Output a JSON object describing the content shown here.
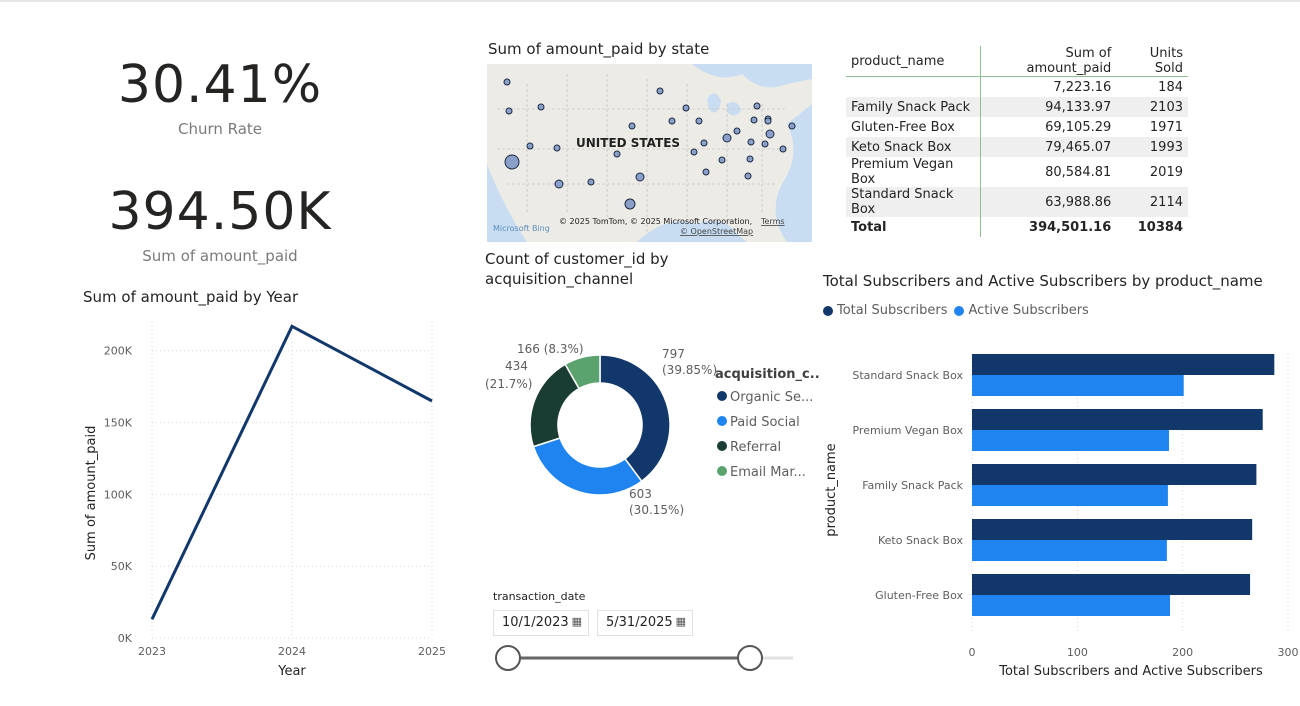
{
  "kpis": {
    "churn": {
      "value": "30.41%",
      "label": "Churn Rate"
    },
    "amount": {
      "value": "394.50K",
      "label": "Sum of amount_paid"
    }
  },
  "map": {
    "title": "Sum of amount_paid by state",
    "country_label": "UNITED STATES",
    "attribution": "© 2025 TomTom, © 2025 Microsoft Corporation,",
    "terms": "Terms",
    "osm": "© OpenStreetMap",
    "brand": "Microsoft Bing"
  },
  "table": {
    "headers": [
      "product_name",
      "Sum of amount_paid",
      "Units Sold"
    ],
    "rows": [
      [
        "",
        "7,223.16",
        "184"
      ],
      [
        "Family Snack Pack",
        "94,133.97",
        "2103"
      ],
      [
        "Gluten-Free Box",
        "69,105.29",
        "1971"
      ],
      [
        "Keto Snack Box",
        "79,465.07",
        "1993"
      ],
      [
        "Premium Vegan Box",
        "80,584.81",
        "2019"
      ],
      [
        "Standard Snack Box",
        "63,988.86",
        "2114"
      ]
    ],
    "total": [
      "Total",
      "394,501.16",
      "10384"
    ]
  },
  "colors": {
    "dark_blue": "#12386b",
    "light_blue": "#1f84f0",
    "dark_green": "#1a3d33",
    "green": "#5aa36e",
    "line": "#12386b"
  },
  "slicer": {
    "label": "transaction_date",
    "start": "10/1/2023",
    "end": "5/31/2025",
    "calendar_icon": "calendar-icon"
  },
  "chart_data": [
    {
      "type": "line",
      "title": "Sum of amount_paid by Year",
      "xlabel": "Year",
      "ylabel": "Sum of amount_paid",
      "x": [
        "2023",
        "2024",
        "2025"
      ],
      "series": [
        {
          "values": [
            13000,
            217000,
            165000
          ]
        }
      ],
      "ylim": [
        0,
        220000
      ],
      "yticks": [
        "0K",
        "50K",
        "100K",
        "150K",
        "200K"
      ],
      "grid": true
    },
    {
      "type": "pie",
      "title": "Count of customer_id by acquisition_channel",
      "legend_title": "acquisition_c...",
      "legend_labels": [
        "Organic Se...",
        "Paid Social",
        "Referral",
        "Email Mar..."
      ],
      "values": [
        797,
        603,
        434,
        166
      ],
      "slice_labels": [
        [
          "797",
          "(39.85%)"
        ],
        [
          "603",
          "(30.15%)"
        ],
        [
          "434",
          "(21.7%)"
        ],
        [
          "166 (8.3%)"
        ]
      ],
      "donut": true,
      "legend_position": "right"
    },
    {
      "type": "bar",
      "orientation": "horizontal",
      "title": "Total Subscribers and Active Subscribers by product_name",
      "xlabel": "Total Subscribers and Active Subscribers",
      "ylabel": "product_name",
      "categories": [
        "Standard Snack Box",
        "Premium Vegan Box",
        "Family Snack Pack",
        "Keto Snack Box",
        "Gluten-Free Box"
      ],
      "series": [
        {
          "name": "Total Subscribers",
          "values": [
            287,
            276,
            270,
            266,
            264
          ]
        },
        {
          "name": "Active Subscribers",
          "values": [
            201,
            187,
            186,
            185,
            188
          ]
        }
      ],
      "xlim": [
        0,
        300
      ],
      "xticks": [
        "0",
        "100",
        "200",
        "300"
      ],
      "legend_position": "top-left"
    }
  ]
}
